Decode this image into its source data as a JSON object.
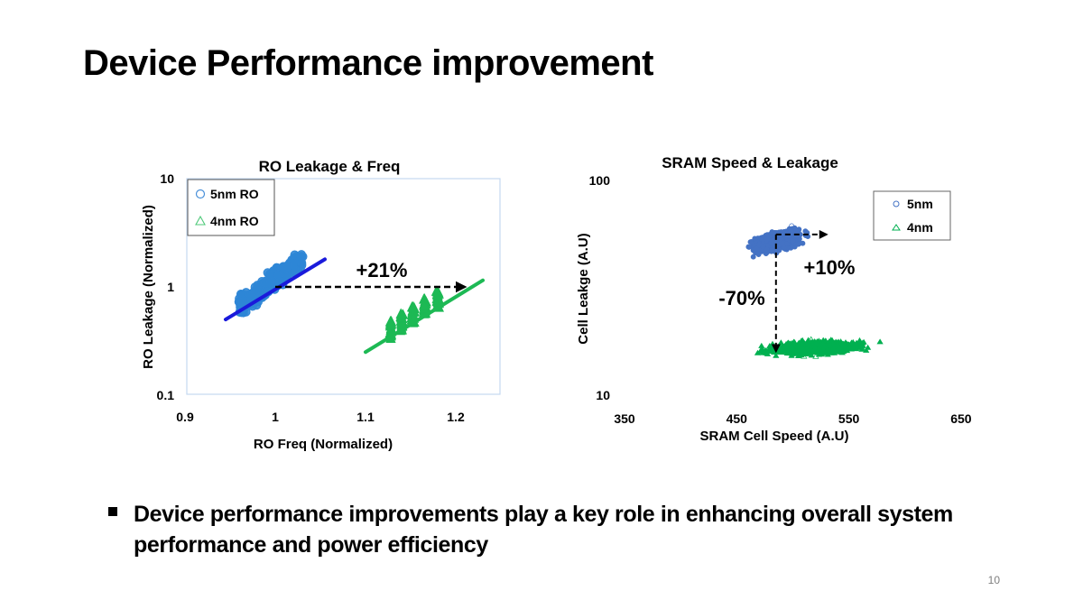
{
  "slide": {
    "title": "Device Performance improvement",
    "bullet": "Device performance improvements play a key role in enhancing overall system performance and power efficiency",
    "page_number": "10"
  },
  "colors": {
    "five_nm_left": "#2e86d6",
    "five_nm_line": "#1a1adb",
    "four_nm": "#1db954",
    "five_nm_right": "#4472c4",
    "four_nm_right": "#00b050",
    "frame": "#c5d9f1"
  },
  "chart_data": [
    {
      "type": "scatter",
      "title": "RO Leakage & Freq",
      "xlabel": "RO Freq (Normalized)",
      "ylabel": "RO Leakage (Normalized)",
      "xlim": [
        0.9,
        1.25
      ],
      "ylim": [
        0.1,
        10
      ],
      "yscale": "log",
      "xticks": [
        "0.9",
        "1",
        "1.1",
        "1.2"
      ],
      "yticks": [
        "10",
        "1",
        "0.1"
      ],
      "legend_position": "top-left",
      "series": [
        {
          "name": "5nm RO",
          "marker": "circle",
          "cluster": {
            "x_range": [
              0.96,
              1.03
            ],
            "y_range": [
              0.65,
              1.8
            ],
            "center": [
              0.995,
              1.0
            ]
          },
          "trendline": {
            "x": [
              0.945,
              1.055
            ],
            "y": [
              0.5,
              1.8
            ]
          }
        },
        {
          "name": "4nm RO",
          "marker": "triangle",
          "cluster": {
            "x_range": [
              1.125,
              1.185
            ],
            "y_range": [
              0.32,
              0.68
            ],
            "center": [
              1.155,
              0.48
            ]
          },
          "trendline": {
            "x": [
              1.1,
              1.23
            ],
            "y": [
              0.25,
              1.15
            ]
          }
        }
      ],
      "annotations": [
        {
          "text": "+21%",
          "type": "arrow",
          "from": [
            1.0,
            1.0
          ],
          "to": [
            1.21,
            1.0
          ]
        }
      ]
    },
    {
      "type": "scatter",
      "title": "SRAM Speed & Leakage",
      "xlabel": "SRAM Cell Speed (A.U)",
      "ylabel": "Cell Leakge (A.U)",
      "xlim": [
        350,
        650
      ],
      "ylim": [
        10,
        100
      ],
      "yscale": "log",
      "xticks": [
        "350",
        "450",
        "550",
        "650"
      ],
      "yticks": [
        "100",
        "10"
      ],
      "legend_position": "top-right",
      "series": [
        {
          "name": "5nm",
          "marker": "circle",
          "cluster": {
            "x_range": [
              430,
              550
            ],
            "y_range": [
              40,
              78
            ],
            "center": [
              487,
              52
            ]
          }
        },
        {
          "name": "4nm",
          "marker": "triangle",
          "cluster": {
            "x_range": [
              440,
              630
            ],
            "y_range": [
              13,
              22
            ],
            "center": [
              530,
              16
            ]
          }
        }
      ],
      "annotations": [
        {
          "text": "+10%",
          "type": "arrow",
          "from": [
            485,
            56
          ],
          "to": [
            530,
            56
          ]
        },
        {
          "text": "-70%",
          "type": "arrow",
          "from": [
            485,
            56
          ],
          "to": [
            485,
            16
          ]
        }
      ]
    }
  ]
}
